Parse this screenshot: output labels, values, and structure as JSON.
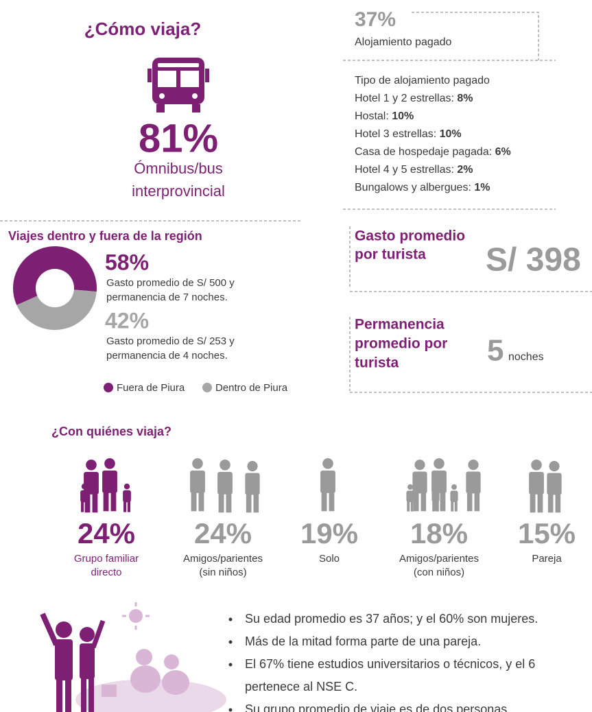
{
  "how_travel": {
    "title": "¿Cómo viaja?",
    "percent": "81%",
    "label_lines": [
      "Ómnibus/bus",
      "interprovincial"
    ]
  },
  "lodging": {
    "percent": "37%",
    "label": "Alojamiento pagado",
    "types_title": "Tipo de alojamiento pagado",
    "types": [
      {
        "label": "Hotel 1 y 2 estrellas: ",
        "value": "8%"
      },
      {
        "label": "Hostal: ",
        "value": "10%"
      },
      {
        "label": "Hotel 3 estrellas: ",
        "value": "10%"
      },
      {
        "label": "Casa de hospedaje pagada: ",
        "value": "6%"
      },
      {
        "label": "Hotel 4 y 5 estrellas: ",
        "value": "2%"
      },
      {
        "label": "Bungalows y albergues: ",
        "value": "1%"
      }
    ]
  },
  "regions": {
    "title": "Viajes dentro y fuera de la región",
    "items": [
      {
        "name": "Fuera de Piura",
        "value": 58,
        "value_label": "58%",
        "color": "#7d1f72",
        "lines": [
          "Gasto promedio de S/ 500 y",
          "permanencia de 7 noches."
        ]
      },
      {
        "name": "Dentro de Piura",
        "value": 42,
        "value_label": "42%",
        "color": "#a6a6a6",
        "lines": [
          "Gasto promedio de S/ 253 y",
          "permanencia de 4 noches."
        ]
      }
    ]
  },
  "spending": {
    "title_lines": [
      "Gasto promedio",
      "por turista"
    ],
    "value": "S/ 398"
  },
  "stay": {
    "title_lines": [
      "Permanencia",
      "promedio por",
      "turista"
    ],
    "value": "5",
    "unit": "noches"
  },
  "companions": {
    "title": "¿Con quiénes viaja?",
    "groups": [
      {
        "percent": "24%",
        "label_lines": [
          "Grupo familiar",
          "directo"
        ]
      },
      {
        "percent": "24%",
        "label_lines": [
          "Amigos/parientes",
          "(sin niños)"
        ]
      },
      {
        "percent": "19%",
        "label_lines": [
          "Solo"
        ]
      },
      {
        "percent": "18%",
        "label_lines": [
          "Amigos/parientes",
          "(con niños)"
        ]
      },
      {
        "percent": "15%",
        "label_lines": [
          "Pareja"
        ]
      }
    ]
  },
  "bullets": [
    [
      "Su edad promedio es 37 años; y el 60% son mujeres."
    ],
    [
      "Más de la mitad forma parte de una pareja."
    ],
    [
      "El 67% tiene estudios universitarios o técnicos, y el 6",
      "pertenece al NSE C."
    ],
    [
      "Su grupo promedio de viaje es de dos personas."
    ]
  ]
}
